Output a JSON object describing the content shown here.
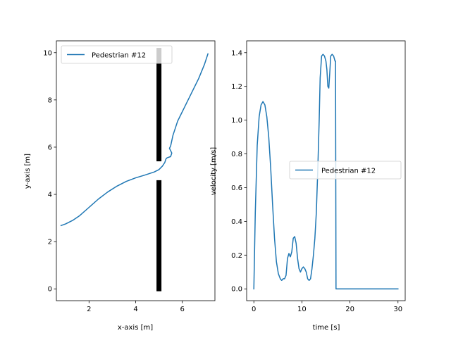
{
  "chart_data": [
    {
      "type": "line",
      "xlabel": "x-axis [m]",
      "ylabel": "y-axis [m]",
      "xlim": [
        0.6,
        7.4
      ],
      "ylim": [
        -0.5,
        10.5
      ],
      "xticks": [
        2,
        4,
        6
      ],
      "yticks": [
        0,
        2,
        4,
        6,
        8,
        10
      ],
      "legend_position": "upper-left",
      "series": [
        {
          "name": "Pedestrian #12",
          "color": "#1f77b4",
          "x": [
            0.8,
            1.0,
            1.3,
            1.6,
            2.0,
            2.4,
            2.8,
            3.2,
            3.6,
            4.0,
            4.4,
            4.8,
            5.0,
            5.15,
            5.25,
            5.3,
            5.35,
            5.5,
            5.55,
            5.45,
            5.5,
            5.6,
            5.8,
            6.1,
            6.4,
            6.7,
            6.95,
            7.1
          ],
          "y": [
            2.68,
            2.75,
            2.9,
            3.1,
            3.45,
            3.8,
            4.1,
            4.35,
            4.55,
            4.7,
            4.82,
            4.95,
            5.05,
            5.2,
            5.35,
            5.5,
            5.55,
            5.6,
            5.75,
            5.95,
            6.05,
            6.5,
            7.1,
            7.7,
            8.3,
            8.9,
            9.5,
            9.95
          ]
        }
      ],
      "obstacles": [
        {
          "x": 5.0,
          "y": [
            -0.1,
            4.6
          ]
        },
        {
          "x": 5.0,
          "y": [
            5.4,
            10.2
          ]
        }
      ]
    },
    {
      "type": "line",
      "xlabel": "time [s]",
      "ylabel": "velocity [m/s]",
      "xlim": [
        -1.5,
        31.5
      ],
      "ylim": [
        -0.07,
        1.47
      ],
      "xticks": [
        0,
        10,
        20,
        30
      ],
      "yticks": [
        0.0,
        0.2,
        0.4,
        0.6,
        0.8,
        1.0,
        1.2,
        1.4
      ],
      "legend_position": "center-right",
      "series": [
        {
          "name": "Pedestrian #12",
          "color": "#1f77b4",
          "x": [
            0,
            0.3,
            0.7,
            1.1,
            1.5,
            1.9,
            2.3,
            2.7,
            3.1,
            3.5,
            3.9,
            4.3,
            4.7,
            5.1,
            5.5,
            5.8,
            6.1,
            6.4,
            6.7,
            7.0,
            7.3,
            7.6,
            7.9,
            8.2,
            8.5,
            8.8,
            9.1,
            9.4,
            9.7,
            10.0,
            10.3,
            10.6,
            10.9,
            11.2,
            11.5,
            11.8,
            12.1,
            12.4,
            12.7,
            13.0,
            13.3,
            13.6,
            13.8,
            14.1,
            14.4,
            14.7,
            15.0,
            15.2,
            15.4,
            15.6,
            15.8,
            16.0,
            16.3,
            16.6,
            16.8,
            16.9,
            17.0,
            17.1,
            18,
            20,
            25,
            30
          ],
          "y": [
            0.0,
            0.45,
            0.85,
            1.02,
            1.09,
            1.11,
            1.09,
            1.02,
            0.9,
            0.72,
            0.5,
            0.3,
            0.16,
            0.09,
            0.06,
            0.05,
            0.06,
            0.06,
            0.08,
            0.18,
            0.21,
            0.19,
            0.22,
            0.3,
            0.31,
            0.27,
            0.18,
            0.12,
            0.1,
            0.12,
            0.13,
            0.12,
            0.1,
            0.06,
            0.05,
            0.06,
            0.12,
            0.2,
            0.3,
            0.45,
            0.7,
            1.0,
            1.25,
            1.38,
            1.39,
            1.38,
            1.35,
            1.3,
            1.2,
            1.19,
            1.28,
            1.38,
            1.39,
            1.38,
            1.36,
            1.35,
            1.35,
            0.0,
            0.0,
            0.0,
            0.0,
            0.0
          ]
        }
      ]
    }
  ]
}
